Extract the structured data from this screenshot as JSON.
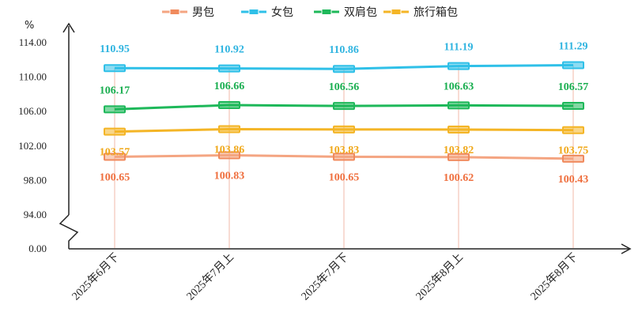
{
  "chart_data": {
    "type": "line",
    "ylabel": "%",
    "categories": [
      "2025年6月下",
      "2025年7月上",
      "2025年7月下",
      "2025年8月上",
      "2025年8月下"
    ],
    "y_tick_labels": [
      "0.00",
      "94.00",
      "98.00",
      "102.00",
      "106.00",
      "110.00",
      "114.00"
    ],
    "y_axis_break": true,
    "ylim": [
      94,
      114
    ],
    "legend_position": "top-center",
    "grid": false,
    "series": [
      {
        "name": "男包",
        "color": "#F4A582",
        "marker_color": "#F08A5D",
        "label_color": "#EF6F3E",
        "values": [
          100.65,
          100.83,
          100.65,
          100.62,
          100.43
        ],
        "labels": [
          "100.65",
          "100.83",
          "100.65",
          "100.62",
          "100.43"
        ],
        "label_side": "below"
      },
      {
        "name": "女包",
        "color": "#2FC0E8",
        "marker_color": "#2FC0E8",
        "label_color": "#2FB4E0",
        "values": [
          110.95,
          110.92,
          110.86,
          111.19,
          111.29
        ],
        "labels": [
          "110.95",
          "110.92",
          "110.86",
          "111.19",
          "111.29"
        ],
        "label_side": "above"
      },
      {
        "name": "双肩包",
        "color": "#1EB85A",
        "marker_color": "#1EB85A",
        "label_color": "#1AAE50",
        "values": [
          106.17,
          106.66,
          106.56,
          106.63,
          106.57
        ],
        "labels": [
          "106.17",
          "106.66",
          "106.56",
          "106.63",
          "106.57"
        ],
        "label_side": "above"
      },
      {
        "name": "旅行箱包",
        "color": "#F4B526",
        "marker_color": "#F4B526",
        "label_color": "#F0A81A",
        "values": [
          103.57,
          103.86,
          103.83,
          103.82,
          103.75
        ],
        "labels": [
          "103.57",
          "103.86",
          "103.83",
          "103.82",
          "103.75"
        ],
        "label_side": "below"
      }
    ]
  }
}
